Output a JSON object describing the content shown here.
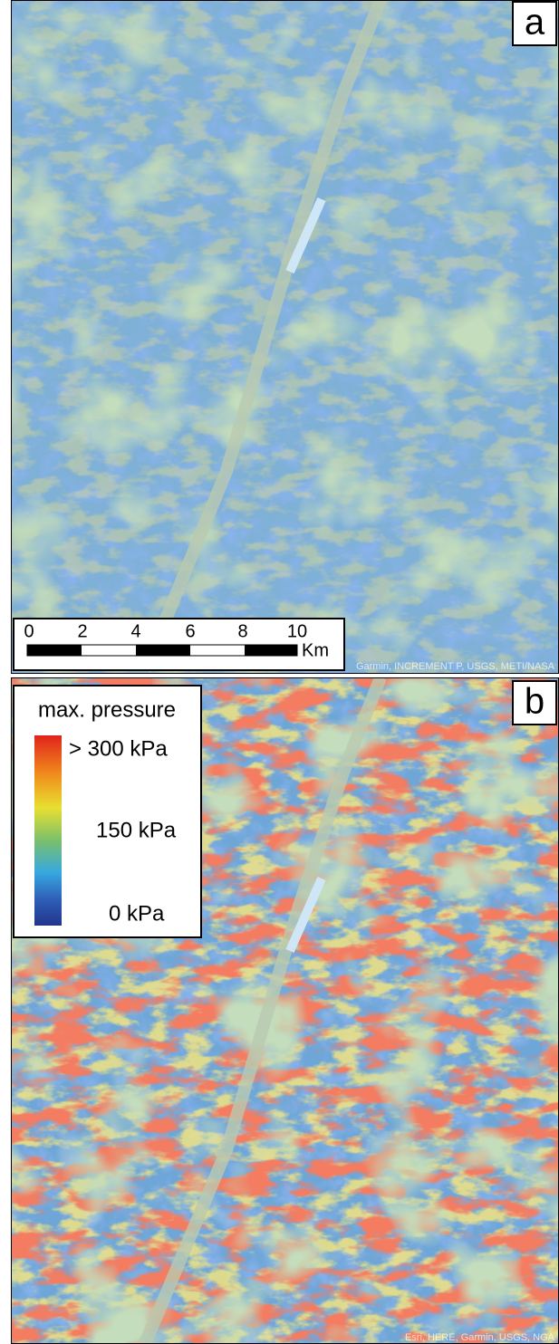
{
  "panel_a": {
    "label": "a",
    "scale_bar": {
      "ticks": [
        "0",
        "2",
        "4",
        "6",
        "8",
        "10"
      ],
      "unit": "Km"
    },
    "attribution": "Garmin, INCREMENT P, USGS, METI/NASA"
  },
  "panel_b": {
    "label": "b",
    "attribution": "Esri, HERE, Garmin, USGS, NGA",
    "legend": {
      "title": "max. pressure",
      "max_label": "> 300 kPa",
      "mid_label": "150 kPa",
      "min_label": "0 kPa"
    }
  }
}
